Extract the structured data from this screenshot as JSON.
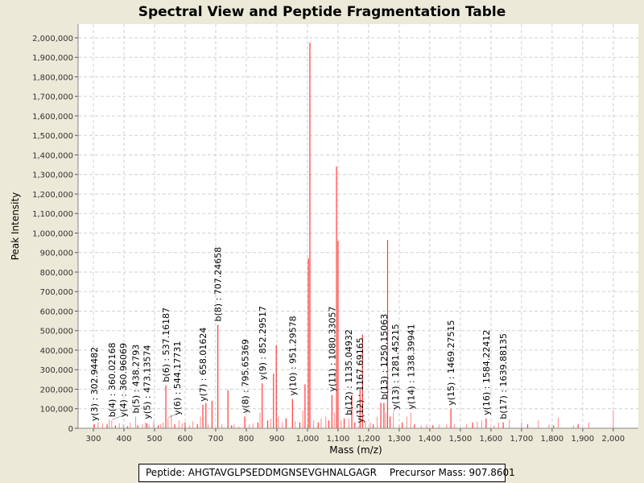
{
  "chart_data": {
    "type": "bar",
    "title": "Spectral View and Peptide Fragmentation Table",
    "xlabel": "Mass (m/z)",
    "ylabel": "Peak Intensity",
    "xlim": [
      250,
      2082
    ],
    "ylim": [
      0,
      2070000
    ],
    "grid": true,
    "x_ticks": [
      300,
      400,
      500,
      600,
      700,
      800,
      900,
      1000,
      1100,
      1200,
      1300,
      1400,
      1500,
      1600,
      1700,
      1800,
      1900,
      2000
    ],
    "x_tick_labels": [
      "300",
      "400",
      "500",
      "600",
      "700",
      "800",
      "900",
      "1,000",
      "1,100",
      "1,200",
      "1,300",
      "1,400",
      "1,500",
      "1,600",
      "1,700",
      "1,800",
      "1,900",
      "2,000"
    ],
    "y_ticks": [
      0,
      100000,
      200000,
      300000,
      400000,
      500000,
      600000,
      700000,
      800000,
      900000,
      1000000,
      1100000,
      1200000,
      1300000,
      1400000,
      1500000,
      1600000,
      1700000,
      1800000,
      1900000,
      2000000
    ],
    "y_tick_labels": [
      "0",
      "100,000",
      "200,000",
      "300,000",
      "400,000",
      "500,000",
      "600,000",
      "700,000",
      "800,000",
      "900,000",
      "1,000,000",
      "1,100,000",
      "1,200,000",
      "1,300,000",
      "1,400,000",
      "1,500,000",
      "1,600,000",
      "1,700,000",
      "1,800,000",
      "1,900,000",
      "2,000,000"
    ],
    "peaks": [
      [
        303,
        20000
      ],
      [
        315,
        30000
      ],
      [
        330,
        25000
      ],
      [
        345,
        20000
      ],
      [
        352,
        45000
      ],
      [
        360,
        40000
      ],
      [
        372,
        15000
      ],
      [
        385,
        25000
      ],
      [
        398,
        20000
      ],
      [
        412,
        10000
      ],
      [
        420,
        30000
      ],
      [
        438,
        60000
      ],
      [
        445,
        15000
      ],
      [
        460,
        20000
      ],
      [
        470,
        30000
      ],
      [
        475,
        25000
      ],
      [
        482,
        20000
      ],
      [
        497,
        35000
      ],
      [
        512,
        15000
      ],
      [
        520,
        20000
      ],
      [
        528,
        30000
      ],
      [
        537,
        220000
      ],
      [
        544,
        50000
      ],
      [
        555,
        70000
      ],
      [
        566,
        20000
      ],
      [
        580,
        40000
      ],
      [
        590,
        25000
      ],
      [
        600,
        30000
      ],
      [
        615,
        15000
      ],
      [
        625,
        35000
      ],
      [
        640,
        20000
      ],
      [
        650,
        60000
      ],
      [
        658,
        120000
      ],
      [
        668,
        130000
      ],
      [
        675,
        20000
      ],
      [
        688,
        140000
      ],
      [
        707,
        530000
      ],
      [
        720,
        20000
      ],
      [
        740,
        195000
      ],
      [
        752,
        15000
      ],
      [
        760,
        20000
      ],
      [
        775,
        10000
      ],
      [
        795,
        60000
      ],
      [
        810,
        20000
      ],
      [
        822,
        25000
      ],
      [
        838,
        30000
      ],
      [
        845,
        80000
      ],
      [
        852,
        230000
      ],
      [
        870,
        40000
      ],
      [
        880,
        50000
      ],
      [
        889,
        280000
      ],
      [
        898,
        425000
      ],
      [
        905,
        60000
      ],
      [
        918,
        30000
      ],
      [
        930,
        50000
      ],
      [
        951,
        150000
      ],
      [
        960,
        35000
      ],
      [
        975,
        30000
      ],
      [
        985,
        90000
      ],
      [
        992,
        225000
      ],
      [
        1003,
        870000
      ],
      [
        1008,
        1975000
      ],
      [
        1020,
        40000
      ],
      [
        1035,
        30000
      ],
      [
        1045,
        50000
      ],
      [
        1060,
        60000
      ],
      [
        1070,
        40000
      ],
      [
        1080,
        170000
      ],
      [
        1088,
        80000
      ],
      [
        1095,
        1340000
      ],
      [
        1100,
        960000
      ],
      [
        1110,
        40000
      ],
      [
        1120,
        50000
      ],
      [
        1135,
        50000
      ],
      [
        1145,
        170000
      ],
      [
        1155,
        30000
      ],
      [
        1167,
        10000
      ],
      [
        1172,
        200000
      ],
      [
        1180,
        480000
      ],
      [
        1190,
        40000
      ],
      [
        1205,
        30000
      ],
      [
        1215,
        20000
      ],
      [
        1228,
        60000
      ],
      [
        1240,
        130000
      ],
      [
        1250,
        130000
      ],
      [
        1256,
        80000
      ],
      [
        1262,
        965000
      ],
      [
        1270,
        60000
      ],
      [
        1281,
        80000
      ],
      [
        1300,
        20000
      ],
      [
        1310,
        30000
      ],
      [
        1325,
        60000
      ],
      [
        1338,
        80000
      ],
      [
        1350,
        20000
      ],
      [
        1372,
        15000
      ],
      [
        1390,
        20000
      ],
      [
        1410,
        15000
      ],
      [
        1430,
        20000
      ],
      [
        1455,
        20000
      ],
      [
        1469,
        100000
      ],
      [
        1480,
        20000
      ],
      [
        1520,
        20000
      ],
      [
        1540,
        30000
      ],
      [
        1555,
        35000
      ],
      [
        1570,
        40000
      ],
      [
        1584,
        50000
      ],
      [
        1610,
        15000
      ],
      [
        1625,
        30000
      ],
      [
        1640,
        30000
      ],
      [
        1660,
        45000
      ],
      [
        1700,
        30000
      ],
      [
        1720,
        20000
      ],
      [
        1755,
        40000
      ],
      [
        1790,
        20000
      ],
      [
        1805,
        15000
      ],
      [
        1820,
        55000
      ],
      [
        1870,
        15000
      ],
      [
        1885,
        20000
      ],
      [
        1920,
        30000
      ],
      [
        2000,
        90000
      ]
    ],
    "annotations": [
      {
        "label": "y(3) : 302.94482",
        "mz": 302.94482,
        "intensity": 20000
      },
      {
        "label": "b(4) : 360.02168",
        "mz": 360.02168,
        "intensity": 40000
      },
      {
        "label": "y(4) : 360.96069",
        "mz": 360.96069,
        "intensity": 40000
      },
      {
        "label": "b(5) : 438.2793",
        "mz": 438.2793,
        "intensity": 60000
      },
      {
        "label": "y(5) : 473.13574",
        "mz": 473.13574,
        "intensity": 30000
      },
      {
        "label": "y(6) : 544.17731",
        "mz": 544.17731,
        "intensity": 50000
      },
      {
        "label": "b(6) : 537.16187",
        "mz": 537.16187,
        "intensity": 220000
      },
      {
        "label": "y(7) : 658.01624",
        "mz": 658.01624,
        "intensity": 120000
      },
      {
        "label": "b(8) : 707.24658",
        "mz": 707.24658,
        "intensity": 530000
      },
      {
        "label": "y(8) : 795.65369",
        "mz": 795.65369,
        "intensity": 60000
      },
      {
        "label": "y(9) : 852.29517",
        "mz": 852.29517,
        "intensity": 230000
      },
      {
        "label": "y(10) : 951.29578",
        "mz": 951.29578,
        "intensity": 150000
      },
      {
        "label": "y(11) : 1080.33057",
        "mz": 1080.33057,
        "intensity": 170000
      },
      {
        "label": "b(12) : 1135.04932",
        "mz": 1135.04932,
        "intensity": 50000
      },
      {
        "label": "y(12) : 1167.69165",
        "mz": 1167.69165,
        "intensity": 10000
      },
      {
        "label": "b(13) : 1250.15063",
        "mz": 1250.15063,
        "intensity": 130000
      },
      {
        "label": "y(13) : 1281.45215",
        "mz": 1281.45215,
        "intensity": 80000
      },
      {
        "label": "y(14) : 1338.39941",
        "mz": 1338.39941,
        "intensity": 80000
      },
      {
        "label": "y(15) : 1469.27515",
        "mz": 1469.27515,
        "intensity": 100000
      },
      {
        "label": "y(16) : 1584.22412",
        "mz": 1584.22412,
        "intensity": 50000
      },
      {
        "label": "b(17) : 1639.88135",
        "mz": 1639.88135,
        "intensity": 30000
      }
    ],
    "colors": {
      "peak": "#ff3b3b",
      "peak_light": "#ff9a9a",
      "grid": "#d0d0d0",
      "plot_bg": "#ffffff"
    }
  },
  "footer": {
    "peptide": "Peptide: AHGTAVGLPSEDDMGNSEVGHNALGAGR",
    "precursor": "Precursor Mass: 907.8601"
  }
}
